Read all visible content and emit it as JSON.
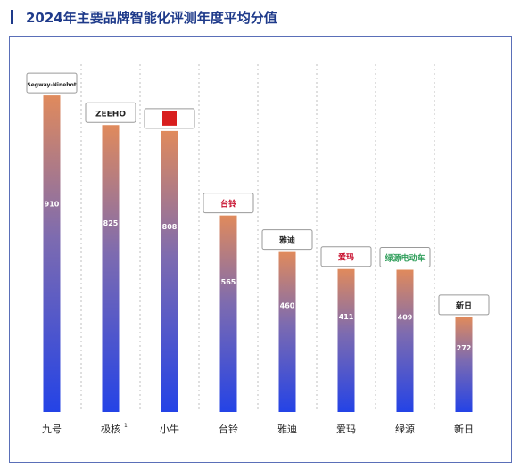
{
  "title": "2024年主要品牌智能化评测年度平均分值",
  "colors": {
    "title": "#1e3a8a",
    "frame": "#5a6fb8",
    "bar_top": "#e08a5c",
    "bar_mid": "#7d6bb0",
    "bar_bottom": "#2443e6",
    "grid": "#bfbfbf"
  },
  "chart_data": {
    "type": "bar",
    "title": "2024年主要品牌智能化评测年度平均分值",
    "xlabel": "",
    "ylabel": "",
    "categories": [
      "九号",
      "极核",
      "小牛",
      "台铃",
      "雅迪",
      "爱玛",
      "绿源",
      "新日"
    ],
    "category_superscripts": [
      "",
      "1",
      "",
      "",
      "",
      "",
      "",
      ""
    ],
    "values": [
      910,
      825,
      808,
      565,
      460,
      411,
      409,
      272
    ],
    "value_labels": [
      "910",
      "825",
      "808",
      "565",
      "460",
      "411",
      "409",
      "272"
    ],
    "brand_logos": [
      "Segway-Ninebot",
      "ZEEHO",
      "",
      "台铃",
      "雅迪",
      "爱玛",
      "绿源电动车",
      "新日"
    ],
    "ylim": [
      0,
      1000
    ],
    "grid": true,
    "grid_style": "vertical-dotted",
    "legend": "none"
  }
}
